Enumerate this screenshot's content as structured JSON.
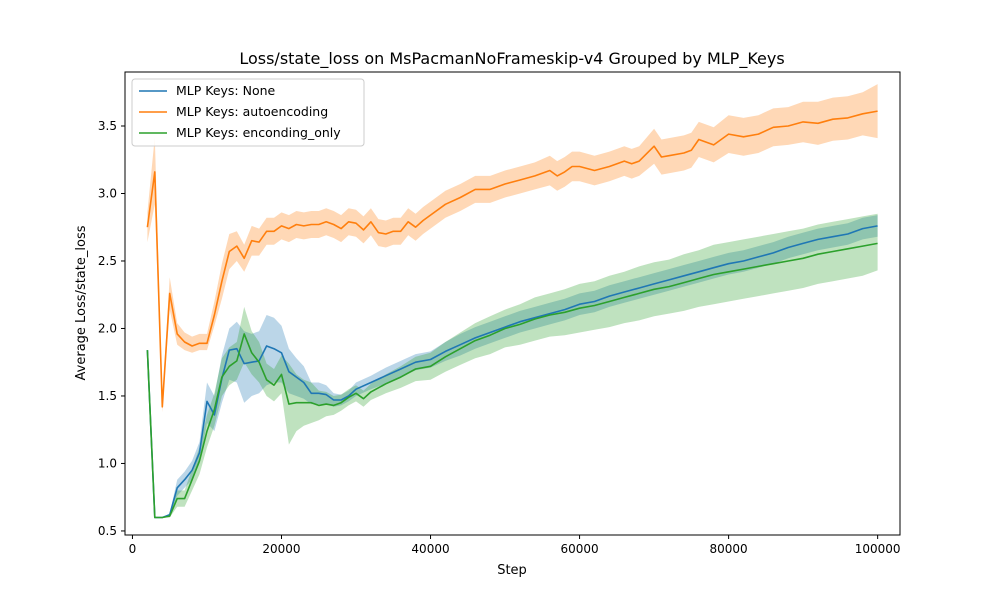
{
  "chart_data": {
    "type": "line",
    "title": "Loss/state_loss on MsPacmanNoFrameskip-v4 Grouped by MLP_Keys",
    "xlabel": "Step",
    "ylabel": "Average Loss/state_loss",
    "xlim": [
      -1000,
      103000
    ],
    "ylim": [
      0.47,
      3.9
    ],
    "xticks": [
      0,
      20000,
      40000,
      60000,
      80000,
      100000
    ],
    "xtick_labels": [
      "0",
      "20000",
      "40000",
      "60000",
      "80000",
      "100000"
    ],
    "yticks": [
      0.5,
      1.0,
      1.5,
      2.0,
      2.5,
      3.0,
      3.5
    ],
    "ytick_labels": [
      "0.5",
      "1.0",
      "1.5",
      "2.0",
      "2.5",
      "3.0",
      "3.5"
    ],
    "grid": false,
    "legend_position": "top-left",
    "series": [
      {
        "name": "MLP Keys: None",
        "color": "#1f77b4",
        "x": [
          2000,
          3000,
          4000,
          5000,
          6000,
          7000,
          8000,
          9000,
          10000,
          11000,
          12000,
          13000,
          14000,
          15000,
          16000,
          17000,
          18000,
          19000,
          20000,
          21000,
          22000,
          23000,
          24000,
          25000,
          26000,
          27000,
          28000,
          29000,
          30000,
          32000,
          34000,
          36000,
          38000,
          40000,
          42000,
          44000,
          46000,
          48000,
          50000,
          52000,
          54000,
          56000,
          58000,
          60000,
          62000,
          64000,
          66000,
          68000,
          70000,
          72000,
          74000,
          76000,
          78000,
          80000,
          82000,
          84000,
          86000,
          88000,
          90000,
          92000,
          94000,
          96000,
          98000,
          100000
        ],
        "y": [
          1.84,
          0.6,
          0.6,
          0.62,
          0.82,
          0.88,
          0.95,
          1.08,
          1.46,
          1.36,
          1.63,
          1.84,
          1.85,
          1.74,
          1.75,
          1.76,
          1.87,
          1.85,
          1.82,
          1.68,
          1.64,
          1.6,
          1.52,
          1.52,
          1.51,
          1.47,
          1.47,
          1.5,
          1.55,
          1.6,
          1.65,
          1.7,
          1.75,
          1.77,
          1.83,
          1.88,
          1.93,
          1.97,
          2.01,
          2.05,
          2.08,
          2.11,
          2.14,
          2.18,
          2.2,
          2.24,
          2.27,
          2.3,
          2.33,
          2.36,
          2.39,
          2.42,
          2.45,
          2.48,
          2.5,
          2.53,
          2.56,
          2.6,
          2.63,
          2.66,
          2.68,
          2.7,
          2.74,
          2.76
        ],
        "lower": [
          1.84,
          0.6,
          0.6,
          0.61,
          0.76,
          0.82,
          0.88,
          1.0,
          1.3,
          1.24,
          1.45,
          1.62,
          1.6,
          1.45,
          1.5,
          1.52,
          1.58,
          1.6,
          1.6,
          1.52,
          1.5,
          1.48,
          1.44,
          1.44,
          1.44,
          1.42,
          1.43,
          1.46,
          1.5,
          1.55,
          1.59,
          1.64,
          1.69,
          1.71,
          1.76,
          1.8,
          1.85,
          1.89,
          1.93,
          1.97,
          2.0,
          2.03,
          2.06,
          2.1,
          2.12,
          2.16,
          2.19,
          2.22,
          2.25,
          2.28,
          2.31,
          2.34,
          2.37,
          2.4,
          2.42,
          2.45,
          2.48,
          2.52,
          2.55,
          2.58,
          2.6,
          2.62,
          2.66,
          2.68
        ],
        "upper": [
          1.84,
          0.6,
          0.6,
          0.63,
          0.88,
          0.94,
          1.02,
          1.16,
          1.6,
          1.5,
          1.8,
          2.0,
          2.05,
          1.98,
          1.96,
          1.98,
          2.1,
          2.08,
          2.02,
          1.85,
          1.78,
          1.72,
          1.6,
          1.6,
          1.58,
          1.52,
          1.51,
          1.54,
          1.6,
          1.65,
          1.71,
          1.76,
          1.81,
          1.83,
          1.9,
          1.96,
          2.01,
          2.05,
          2.09,
          2.13,
          2.16,
          2.19,
          2.22,
          2.26,
          2.28,
          2.32,
          2.35,
          2.38,
          2.41,
          2.44,
          2.47,
          2.5,
          2.53,
          2.56,
          2.58,
          2.61,
          2.64,
          2.68,
          2.71,
          2.74,
          2.76,
          2.78,
          2.82,
          2.84
        ]
      },
      {
        "name": "MLP Keys: autoencoding",
        "color": "#ff7f0e",
        "x": [
          2000,
          3000,
          4000,
          5000,
          6000,
          7000,
          8000,
          9000,
          10000,
          11000,
          12000,
          13000,
          14000,
          15000,
          16000,
          17000,
          18000,
          19000,
          20000,
          21000,
          22000,
          23000,
          24000,
          25000,
          26000,
          27000,
          28000,
          29000,
          30000,
          31000,
          32000,
          33000,
          34000,
          35000,
          36000,
          37000,
          38000,
          39000,
          40000,
          42000,
          44000,
          46000,
          48000,
          50000,
          52000,
          54000,
          56000,
          57000,
          58000,
          59000,
          60000,
          62000,
          64000,
          66000,
          67000,
          68000,
          70000,
          71000,
          72000,
          74000,
          75000,
          76000,
          78000,
          80000,
          82000,
          84000,
          86000,
          88000,
          90000,
          92000,
          94000,
          96000,
          98000,
          100000
        ],
        "y": [
          2.75,
          3.16,
          1.42,
          2.26,
          1.96,
          1.9,
          1.87,
          1.89,
          1.89,
          2.1,
          2.35,
          2.57,
          2.61,
          2.52,
          2.65,
          2.64,
          2.72,
          2.72,
          2.76,
          2.74,
          2.77,
          2.76,
          2.77,
          2.77,
          2.79,
          2.77,
          2.74,
          2.79,
          2.78,
          2.73,
          2.79,
          2.71,
          2.7,
          2.72,
          2.72,
          2.79,
          2.75,
          2.8,
          2.84,
          2.92,
          2.97,
          3.03,
          3.03,
          3.07,
          3.1,
          3.13,
          3.17,
          3.13,
          3.16,
          3.2,
          3.2,
          3.17,
          3.2,
          3.24,
          3.22,
          3.24,
          3.35,
          3.27,
          3.28,
          3.3,
          3.32,
          3.4,
          3.36,
          3.44,
          3.42,
          3.44,
          3.49,
          3.5,
          3.53,
          3.52,
          3.55,
          3.56,
          3.59,
          3.61
        ],
        "lower": [
          2.64,
          2.92,
          1.38,
          2.14,
          1.88,
          1.84,
          1.82,
          1.84,
          1.84,
          2.02,
          2.22,
          2.44,
          2.5,
          2.42,
          2.54,
          2.54,
          2.62,
          2.62,
          2.66,
          2.64,
          2.67,
          2.66,
          2.67,
          2.67,
          2.69,
          2.67,
          2.64,
          2.69,
          2.68,
          2.63,
          2.69,
          2.61,
          2.6,
          2.62,
          2.62,
          2.69,
          2.65,
          2.7,
          2.74,
          2.82,
          2.87,
          2.93,
          2.93,
          2.97,
          3.0,
          3.03,
          3.06,
          3.02,
          3.05,
          3.09,
          3.09,
          3.06,
          3.09,
          3.13,
          3.11,
          3.13,
          3.22,
          3.14,
          3.15,
          3.17,
          3.19,
          3.27,
          3.23,
          3.3,
          3.28,
          3.3,
          3.35,
          3.36,
          3.38,
          3.36,
          3.39,
          3.4,
          3.43,
          3.41
        ],
        "upper": [
          2.86,
          3.42,
          1.48,
          2.38,
          2.04,
          1.97,
          1.94,
          1.96,
          1.96,
          2.2,
          2.48,
          2.7,
          2.72,
          2.62,
          2.76,
          2.74,
          2.82,
          2.82,
          2.86,
          2.84,
          2.87,
          2.86,
          2.87,
          2.87,
          2.89,
          2.87,
          2.84,
          2.89,
          2.88,
          2.83,
          2.89,
          2.81,
          2.8,
          2.82,
          2.82,
          2.89,
          2.85,
          2.9,
          2.94,
          3.02,
          3.07,
          3.13,
          3.13,
          3.17,
          3.2,
          3.23,
          3.28,
          3.24,
          3.27,
          3.31,
          3.31,
          3.28,
          3.31,
          3.35,
          3.33,
          3.35,
          3.48,
          3.4,
          3.41,
          3.43,
          3.45,
          3.53,
          3.49,
          3.58,
          3.56,
          3.58,
          3.63,
          3.64,
          3.68,
          3.68,
          3.71,
          3.72,
          3.75,
          3.81
        ]
      },
      {
        "name": "MLP Keys: enconding_only",
        "color": "#2ca02c",
        "x": [
          2000,
          3000,
          4000,
          5000,
          6000,
          7000,
          8000,
          9000,
          10000,
          11000,
          12000,
          13000,
          14000,
          15000,
          16000,
          17000,
          18000,
          19000,
          20000,
          21000,
          22000,
          23000,
          24000,
          25000,
          26000,
          27000,
          28000,
          29000,
          30000,
          31000,
          32000,
          34000,
          36000,
          38000,
          40000,
          42000,
          44000,
          46000,
          48000,
          50000,
          52000,
          54000,
          56000,
          58000,
          60000,
          62000,
          64000,
          66000,
          68000,
          70000,
          72000,
          74000,
          76000,
          78000,
          80000,
          82000,
          84000,
          86000,
          88000,
          90000,
          92000,
          94000,
          96000,
          98000,
          100000
        ],
        "y": [
          1.84,
          0.6,
          0.6,
          0.61,
          0.74,
          0.74,
          0.88,
          1.02,
          1.24,
          1.4,
          1.64,
          1.72,
          1.76,
          1.96,
          1.82,
          1.75,
          1.62,
          1.58,
          1.66,
          1.44,
          1.45,
          1.45,
          1.45,
          1.43,
          1.44,
          1.43,
          1.45,
          1.49,
          1.52,
          1.48,
          1.53,
          1.59,
          1.64,
          1.7,
          1.72,
          1.79,
          1.85,
          1.91,
          1.95,
          2.0,
          2.03,
          2.07,
          2.1,
          2.12,
          2.15,
          2.17,
          2.2,
          2.23,
          2.26,
          2.29,
          2.31,
          2.34,
          2.37,
          2.4,
          2.42,
          2.44,
          2.46,
          2.48,
          2.5,
          2.52,
          2.55,
          2.57,
          2.59,
          2.61,
          2.63
        ],
        "lower": [
          1.84,
          0.6,
          0.6,
          0.6,
          0.68,
          0.68,
          0.8,
          0.92,
          1.12,
          1.28,
          1.5,
          1.58,
          1.62,
          1.75,
          1.66,
          1.6,
          1.5,
          1.46,
          1.52,
          1.14,
          1.24,
          1.28,
          1.3,
          1.32,
          1.35,
          1.36,
          1.39,
          1.43,
          1.46,
          1.42,
          1.47,
          1.52,
          1.56,
          1.61,
          1.62,
          1.68,
          1.73,
          1.78,
          1.81,
          1.86,
          1.88,
          1.91,
          1.94,
          1.95,
          1.97,
          1.99,
          2.01,
          2.04,
          2.06,
          2.09,
          2.11,
          2.13,
          2.16,
          2.18,
          2.2,
          2.22,
          2.24,
          2.26,
          2.28,
          2.3,
          2.33,
          2.35,
          2.37,
          2.39,
          2.43
        ],
        "upper": [
          1.84,
          0.6,
          0.6,
          0.62,
          0.8,
          0.8,
          0.96,
          1.12,
          1.36,
          1.52,
          1.78,
          1.86,
          1.9,
          2.16,
          1.98,
          1.9,
          1.74,
          1.7,
          1.8,
          1.74,
          1.66,
          1.62,
          1.6,
          1.54,
          1.53,
          1.5,
          1.51,
          1.55,
          1.58,
          1.54,
          1.59,
          1.66,
          1.72,
          1.79,
          1.82,
          1.9,
          1.97,
          2.04,
          2.09,
          2.14,
          2.18,
          2.23,
          2.26,
          2.29,
          2.33,
          2.35,
          2.39,
          2.42,
          2.46,
          2.49,
          2.51,
          2.55,
          2.58,
          2.62,
          2.64,
          2.66,
          2.68,
          2.7,
          2.72,
          2.74,
          2.77,
          2.79,
          2.81,
          2.83,
          2.85
        ]
      }
    ]
  }
}
